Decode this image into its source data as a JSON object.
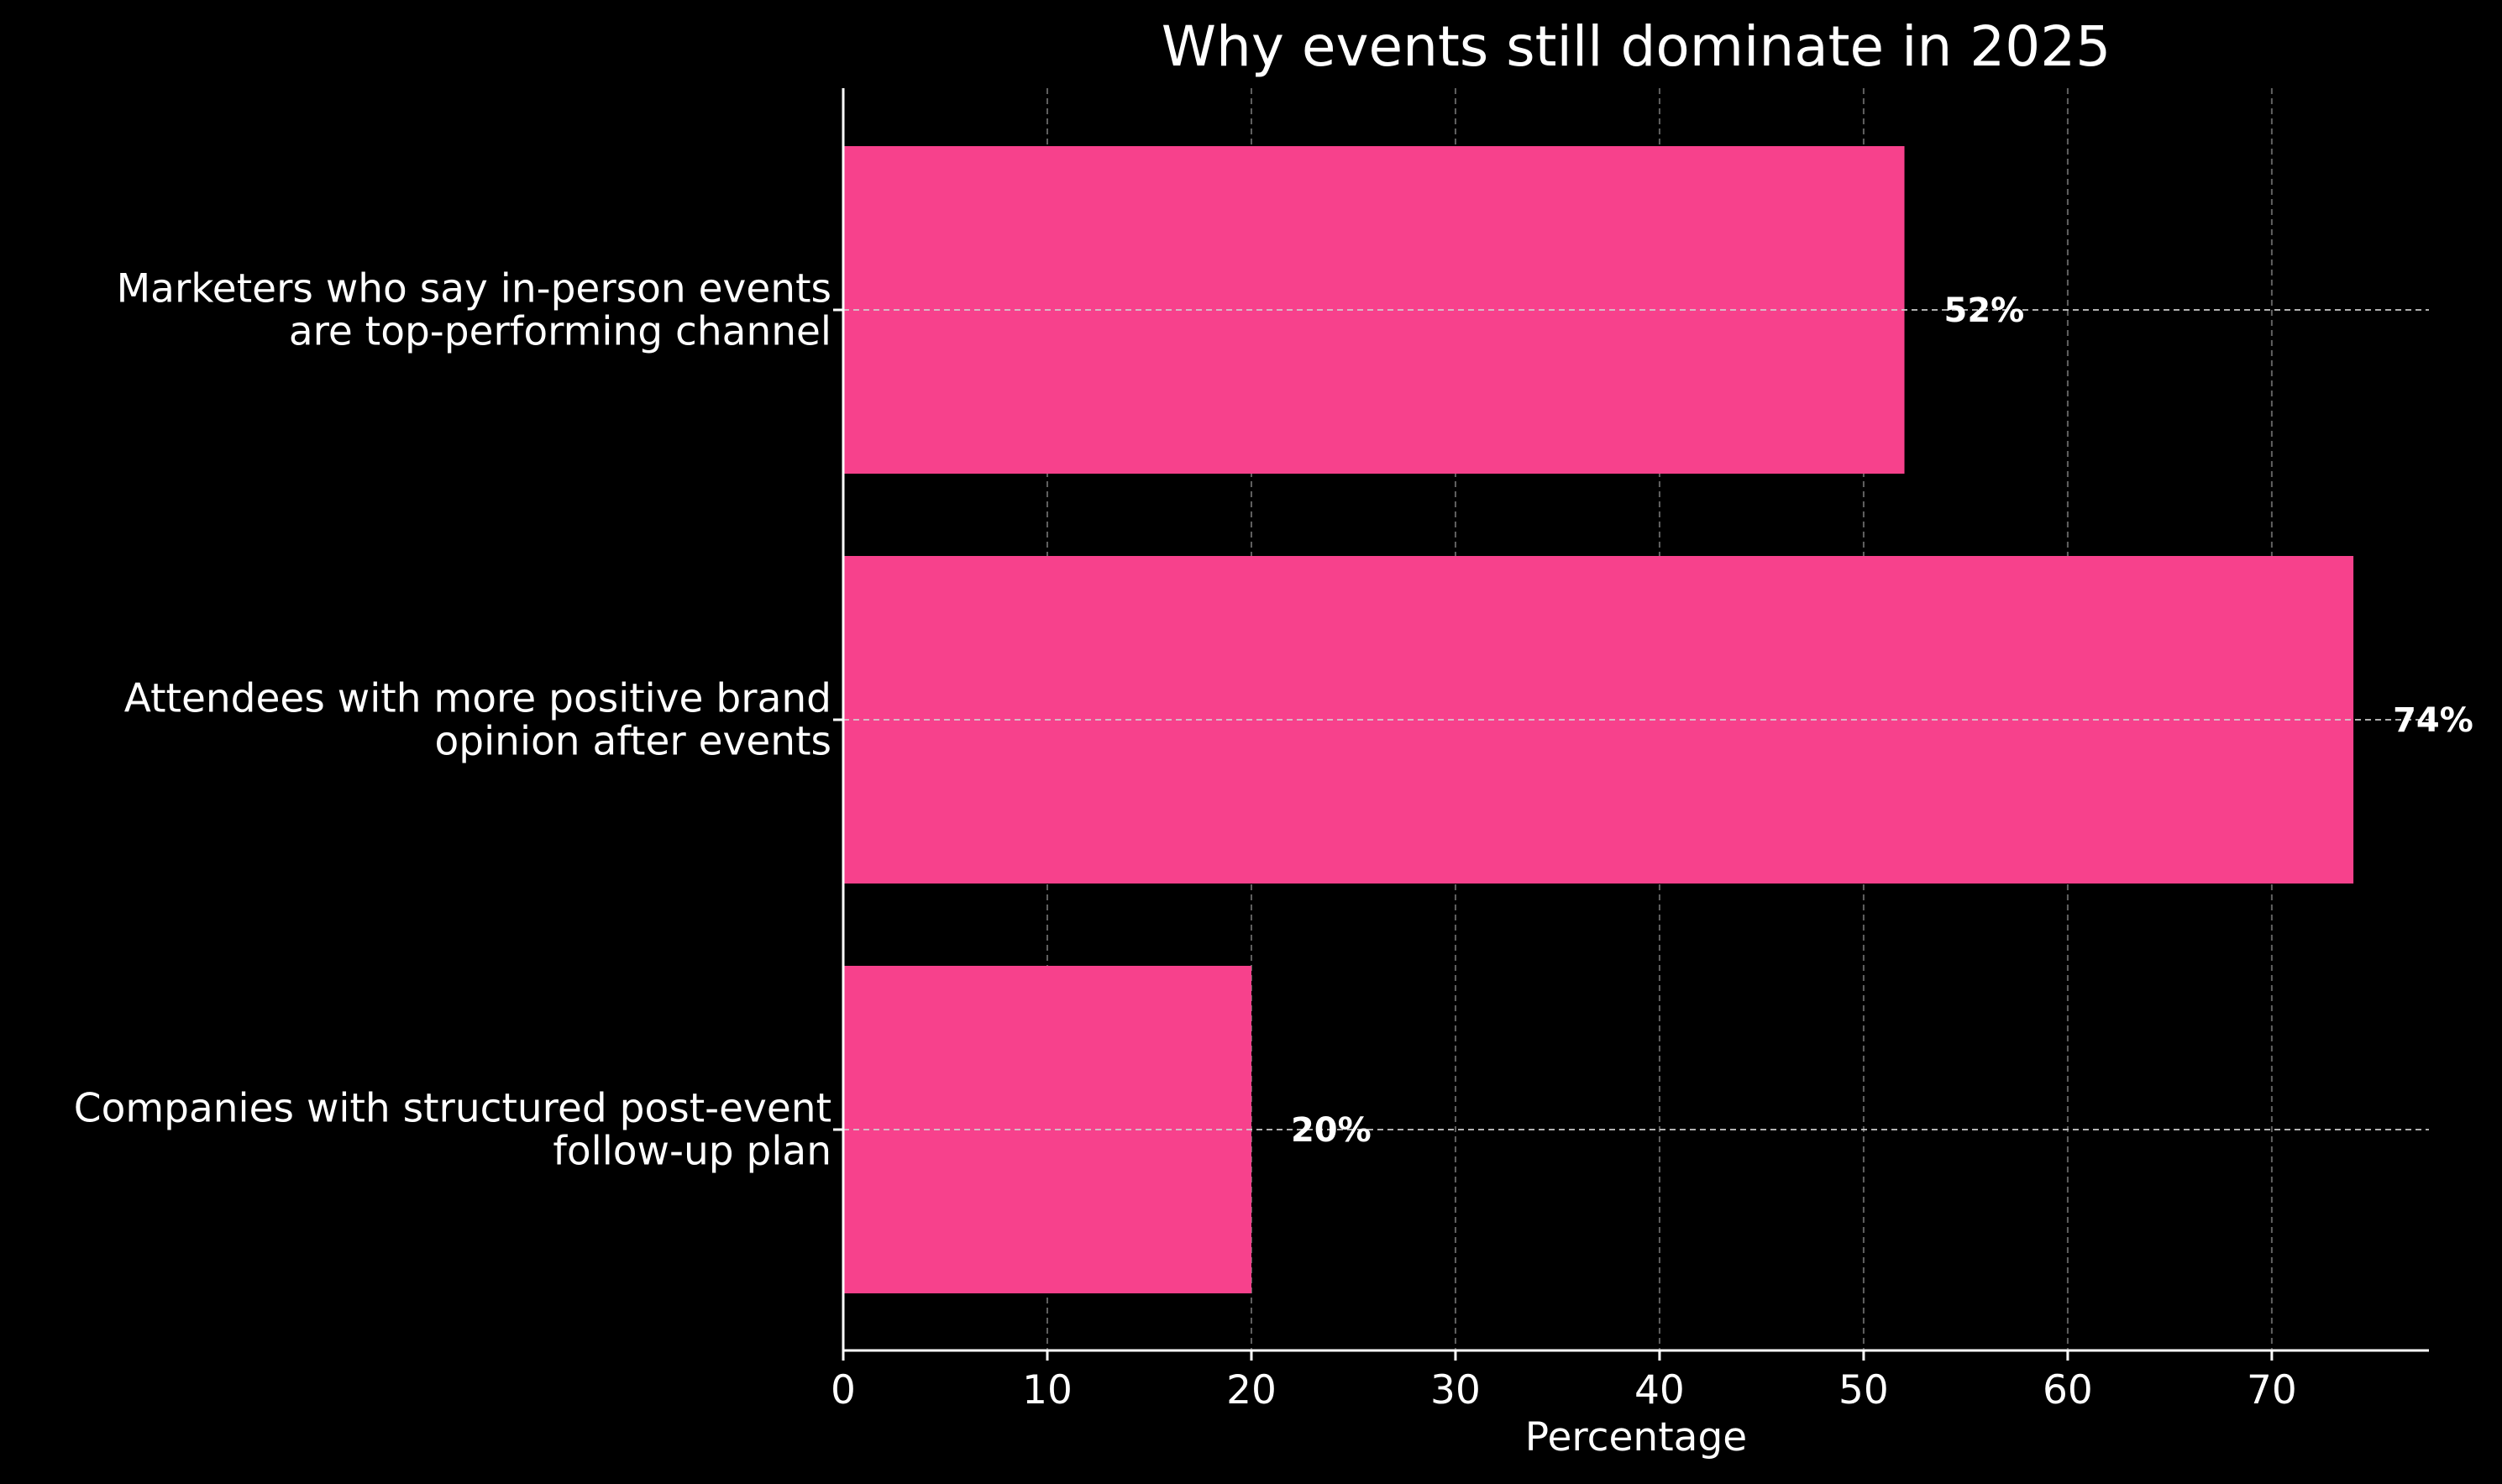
{
  "chart_data": {
    "type": "bar",
    "orientation": "horizontal",
    "title": "Why events still dominate in 2025",
    "xlabel": "Percentage",
    "ylabel": "",
    "xlim": [
      0,
      77.7
    ],
    "xticks": [
      0,
      10,
      20,
      30,
      40,
      50,
      60,
      70
    ],
    "categories": [
      [
        "Marketers who say in-person events",
        "are top-performing channel"
      ],
      [
        "Attendees with more positive brand",
        "opinion after events"
      ],
      [
        "Companies with structured post-event",
        "follow-up plan"
      ]
    ],
    "values": [
      52,
      74,
      20
    ],
    "value_labels": [
      "52%",
      "74%",
      "20%"
    ],
    "grid": true,
    "bar_color": "#f7418c",
    "background_color": "#000000",
    "text_color": "#ffffff"
  }
}
